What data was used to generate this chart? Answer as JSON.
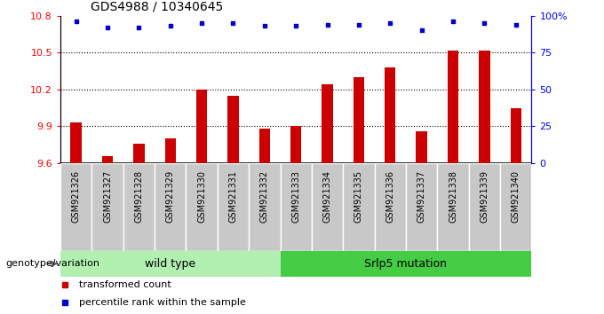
{
  "title": "GDS4988 / 10340645",
  "samples": [
    "GSM921326",
    "GSM921327",
    "GSM921328",
    "GSM921329",
    "GSM921330",
    "GSM921331",
    "GSM921332",
    "GSM921333",
    "GSM921334",
    "GSM921335",
    "GSM921336",
    "GSM921337",
    "GSM921338",
    "GSM921339",
    "GSM921340"
  ],
  "bar_values": [
    9.93,
    9.66,
    9.76,
    9.8,
    10.2,
    10.15,
    9.88,
    9.9,
    10.24,
    10.3,
    10.38,
    9.86,
    10.52,
    10.52,
    10.05
  ],
  "dot_values": [
    96,
    92,
    92,
    93,
    95,
    95,
    93,
    93,
    94,
    94,
    95,
    90,
    96,
    95,
    94
  ],
  "ylim_left": [
    9.6,
    10.8
  ],
  "ylim_right": [
    0,
    100
  ],
  "yticks_left": [
    9.6,
    9.9,
    10.2,
    10.5,
    10.8
  ],
  "yticks_right": [
    0,
    25,
    50,
    75,
    100
  ],
  "ytick_labels_right": [
    "0",
    "25",
    "50",
    "75",
    "100%"
  ],
  "bar_color": "#cc0000",
  "dot_color": "#0000cc",
  "grid_lines": [
    9.9,
    10.2,
    10.5
  ],
  "wild_type_count": 7,
  "mutation_label": "Srlp5 mutation",
  "wild_type_label": "wild type",
  "genotype_label": "genotype/variation",
  "legend_bar": "transformed count",
  "legend_dot": "percentile rank within the sample",
  "color_light_green": "#b2f0b2",
  "color_bright_green": "#44cc44",
  "color_gray_box": "#c8c8c8",
  "color_gray_border": "#888888"
}
